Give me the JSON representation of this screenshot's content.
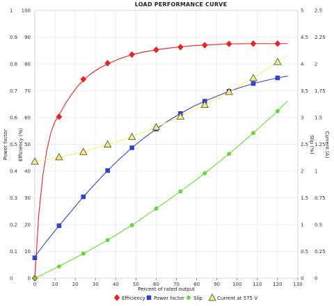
{
  "chart_data": {
    "type": "line",
    "title": "LOAD PERFORMANCE CURVE",
    "xlabel": "Percent of rated output",
    "xlim": [
      0,
      130
    ],
    "xticks": [
      0,
      10,
      20,
      30,
      40,
      50,
      60,
      70,
      80,
      90,
      100,
      110,
      120,
      130
    ],
    "axes": {
      "left_outer": {
        "label": "Power factor",
        "range": [
          0,
          1
        ],
        "ticks": [
          "0",
          "0.1",
          "0.2",
          "0.3",
          "0.4",
          "0.5",
          "0.6",
          "0.7",
          "0.8",
          "0.9",
          "1"
        ]
      },
      "left_inner": {
        "label": "Efficiency (%)",
        "range": [
          0,
          100
        ],
        "ticks": [
          "0",
          "10",
          "20",
          "30",
          "40",
          "50",
          "60",
          "70",
          "80",
          "90",
          "100"
        ]
      },
      "right_inner": {
        "label": "Slip (%)",
        "range": [
          0,
          5
        ],
        "ticks": [
          "0",
          "0.5",
          "1",
          "1.5",
          "2",
          "2.5",
          "3",
          "3.5",
          "4",
          "4.5",
          "5"
        ]
      },
      "right_outer": {
        "label": "Current (A)",
        "range": [
          0,
          2.5
        ],
        "ticks": [
          "0",
          "0.25",
          "0.5",
          "0.75",
          "1",
          "1.25",
          "1.5",
          "1.75",
          "2",
          "2.25",
          "2.5"
        ]
      }
    },
    "grid": true,
    "legend_position": "bottom",
    "series": [
      {
        "name": "Efficiency",
        "axis": "left_inner",
        "color": "#ee2222",
        "marker": "diamond",
        "x": [
          0,
          12,
          24,
          36,
          48,
          60,
          72,
          84,
          96,
          108,
          120
        ],
        "y": [
          0,
          60.3,
          74.3,
          80.3,
          83.5,
          85.3,
          86.3,
          87.0,
          87.5,
          87.6,
          87.6
        ],
        "curve_x": [
          0,
          2,
          4,
          6,
          8,
          10,
          12,
          15,
          18,
          21,
          24,
          28,
          32,
          36,
          42,
          48,
          54,
          60,
          66,
          72,
          78,
          84,
          90,
          96,
          102,
          108,
          114,
          120,
          125
        ],
        "curve_y": [
          0,
          24,
          38.5,
          48,
          54.5,
          58.5,
          61,
          65,
          68.5,
          71.5,
          74,
          76.5,
          78.5,
          80,
          82,
          83.5,
          84.5,
          85.3,
          85.9,
          86.4,
          86.8,
          87.1,
          87.3,
          87.5,
          87.55,
          87.6,
          87.6,
          87.6,
          87.6
        ]
      },
      {
        "name": "Power factor",
        "axis": "left_outer",
        "color": "#3344cc",
        "marker": "square",
        "x": [
          0,
          12,
          24,
          36,
          48,
          60,
          72,
          84,
          96,
          108,
          120
        ],
        "y": [
          0.076,
          0.196,
          0.304,
          0.402,
          0.487,
          0.557,
          0.615,
          0.661,
          0.698,
          0.727,
          0.748
        ],
        "curve_x": [
          0,
          6,
          12,
          18,
          24,
          30,
          36,
          42,
          48,
          54,
          60,
          66,
          72,
          78,
          84,
          90,
          96,
          102,
          108,
          114,
          120,
          125
        ],
        "curve_y": [
          0.08,
          0.14,
          0.196,
          0.25,
          0.304,
          0.354,
          0.402,
          0.446,
          0.487,
          0.524,
          0.557,
          0.588,
          0.615,
          0.64,
          0.661,
          0.68,
          0.698,
          0.713,
          0.727,
          0.738,
          0.748,
          0.755
        ]
      },
      {
        "name": "Slip",
        "axis": "right_inner",
        "color": "#66dd33",
        "marker": "circle",
        "x": [
          0,
          12,
          24,
          36,
          48,
          60,
          72,
          84,
          96,
          108,
          120
        ],
        "y": [
          0,
          0.22,
          0.46,
          0.71,
          0.99,
          1.3,
          1.62,
          1.96,
          2.32,
          2.71,
          3.12
        ],
        "curve_x": [
          0,
          12,
          24,
          36,
          48,
          60,
          72,
          84,
          96,
          108,
          120,
          125
        ],
        "curve_y": [
          0,
          0.22,
          0.46,
          0.71,
          0.99,
          1.3,
          1.62,
          1.96,
          2.32,
          2.71,
          3.12,
          3.31
        ]
      },
      {
        "name": "Current at 575 V",
        "axis": "right_outer",
        "color": "#f5f07a",
        "marker_stroke": "#555555",
        "marker": "triangle",
        "x": [
          0,
          12,
          24,
          36,
          48,
          60,
          72,
          84,
          96,
          108,
          120
        ],
        "y": [
          1.09,
          1.13,
          1.18,
          1.25,
          1.32,
          1.41,
          1.51,
          1.62,
          1.74,
          1.87,
          2.02
        ],
        "curve_x": [
          0,
          12,
          24,
          36,
          48,
          60,
          72,
          84,
          96,
          108,
          120,
          125
        ],
        "curve_y": [
          1.09,
          1.13,
          1.18,
          1.25,
          1.32,
          1.41,
          1.51,
          1.62,
          1.74,
          1.87,
          2.02,
          2.08
        ]
      }
    ]
  }
}
